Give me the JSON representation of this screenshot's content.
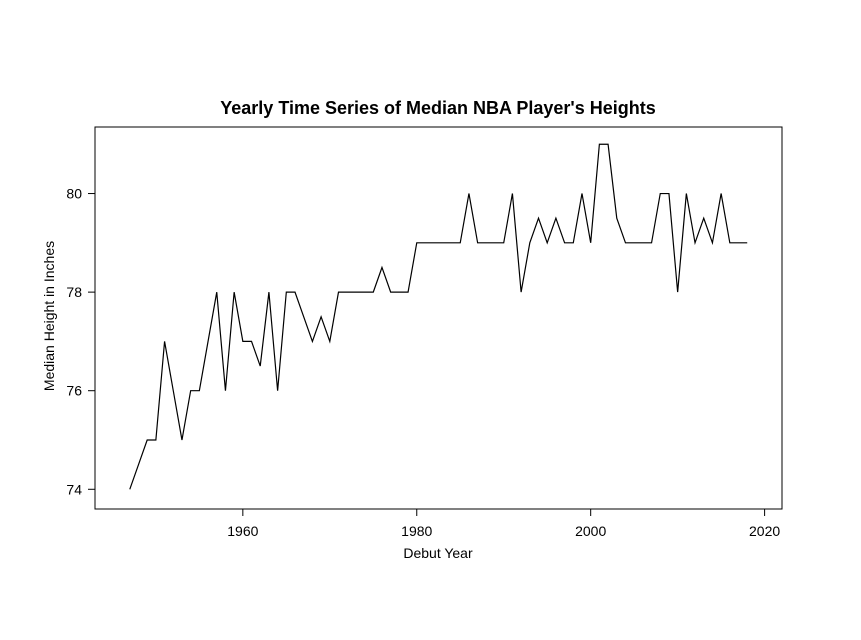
{
  "chart_data": {
    "type": "line",
    "title": "Yearly Time Series of Median NBA Player's Heights",
    "xlabel": "Debut Year",
    "ylabel": "Median Height in Inches",
    "xlim": [
      1943,
      2022
    ],
    "ylim": [
      73.6,
      81.35
    ],
    "xticks": [
      1960,
      1980,
      2000,
      2020
    ],
    "yticks": [
      74,
      76,
      78,
      80
    ],
    "grid": false,
    "series": [
      {
        "x": [
          1947,
          1948,
          1949,
          1950,
          1951,
          1952,
          1953,
          1954,
          1955,
          1956,
          1957,
          1958,
          1959,
          1960,
          1961,
          1962,
          1963,
          1964,
          1965,
          1966,
          1967,
          1968,
          1969,
          1970,
          1971,
          1972,
          1973,
          1974,
          1975,
          1976,
          1977,
          1978,
          1979,
          1980,
          1981,
          1982,
          1983,
          1984,
          1985,
          1986,
          1987,
          1988,
          1989,
          1990,
          1991,
          1992,
          1993,
          1994,
          1995,
          1996,
          1997,
          1998,
          1999,
          2000,
          2001,
          2002,
          2003,
          2004,
          2005,
          2006,
          2007,
          2008,
          2009,
          2010,
          2011,
          2012,
          2013,
          2014,
          2015,
          2016,
          2017,
          2018
        ],
        "y": [
          74,
          74.5,
          75,
          75,
          77,
          76,
          75,
          76,
          76,
          77,
          78,
          76,
          78,
          77,
          77,
          76.5,
          78,
          76,
          78,
          78,
          77.5,
          77,
          77.5,
          77,
          78,
          78,
          78,
          78,
          78,
          78.5,
          78,
          78,
          78,
          79,
          79,
          79,
          79,
          79,
          79,
          80,
          79,
          79,
          79,
          79,
          80,
          78,
          79,
          79.5,
          79,
          79.5,
          79,
          79,
          80,
          79,
          81,
          81,
          79.5,
          79,
          79,
          79,
          79,
          80,
          80,
          78,
          80,
          79,
          79.5,
          79,
          80,
          79,
          79,
          79
        ]
      }
    ]
  }
}
